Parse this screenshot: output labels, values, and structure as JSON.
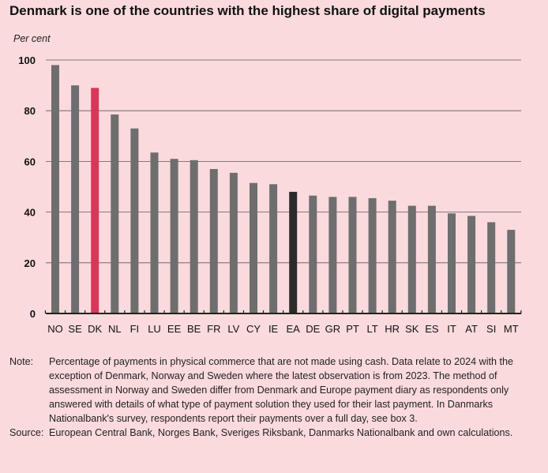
{
  "title": "Denmark is one of the countries with the highest share of digital payments",
  "unit_label": "Per cent",
  "chart_data": {
    "type": "bar",
    "categories": [
      "NO",
      "SE",
      "DK",
      "NL",
      "FI",
      "LU",
      "EE",
      "BE",
      "FR",
      "LV",
      "CY",
      "IE",
      "EA",
      "DE",
      "GR",
      "PT",
      "LT",
      "HR",
      "SK",
      "ES",
      "IT",
      "AT",
      "SI",
      "MT"
    ],
    "values": [
      98,
      90,
      89,
      78.5,
      73,
      63.5,
      61,
      60.5,
      57,
      55.5,
      51.5,
      51,
      48,
      46.5,
      46,
      46,
      45.5,
      44.5,
      42.5,
      42.5,
      39.5,
      38.5,
      36,
      33
    ],
    "ylim": [
      0,
      100
    ],
    "yticks": [
      0,
      20,
      40,
      60,
      80,
      100
    ],
    "grid": true,
    "colors": {
      "default": "#6e6e6e",
      "DK": "#d9365a",
      "EA": "#2b2b2b"
    }
  },
  "notes": {
    "note_label": "Note:",
    "note_text": "Percentage of payments in physical commerce that are not made using cash. Data relate to 2024 with the exception of Denmark, Norway and Sweden where the latest observation is from 2023. The method of assessment in Norway and Sweden differ from Denmark and Europe payment diary as respondents only answered with details of what type of payment solution they used for their last payment. In Danmarks Nationalbank's survey, respondents report their payments over a full day, see box 3.",
    "source_label": "Source:",
    "source_text": "European Central Bank, Norges Bank, Sveriges Riksbank, Danmarks Nationalbank and own calculations."
  }
}
